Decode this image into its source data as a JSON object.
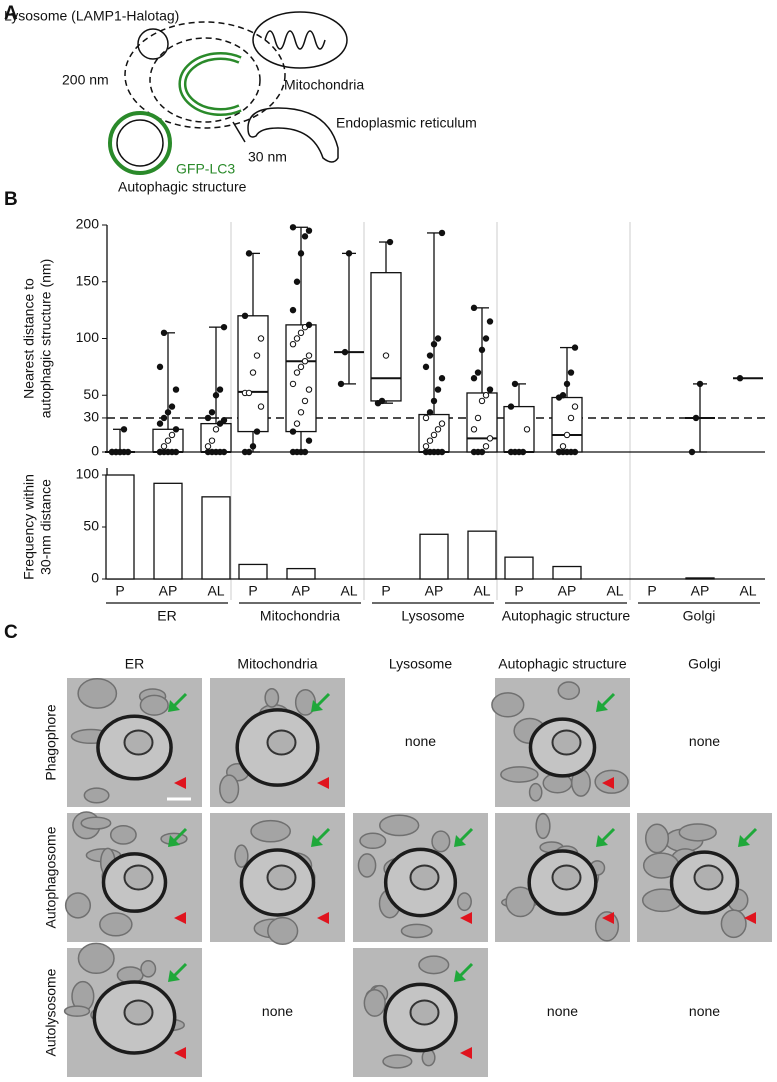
{
  "panels": [
    "A",
    "B",
    "C"
  ],
  "diagram": {
    "lysosome": "Lysosome (LAMP1-Halotag)",
    "mitochondria": "Mitochondria",
    "distance_200": "200 nm",
    "er": "Endoplasmic reticulum",
    "distance_30": "30 nm",
    "marker": "GFP-LC3",
    "autophagic": "Autophagic structure"
  },
  "chart_data": [
    {
      "type": "box",
      "ylabel": [
        "Nearest distance to",
        "autophagic structure (nm)"
      ],
      "categories": [
        "P",
        "AP",
        "AL"
      ],
      "ylim": [
        0,
        200
      ],
      "yticks": [
        0,
        30,
        50,
        100,
        150,
        200
      ],
      "threshold": 30,
      "groups": [
        {
          "name": "ER",
          "boxes": [
            {
              "min": 0,
              "q1": 0,
              "median": 0,
              "q3": 0,
              "max": 20,
              "points": [
                0,
                0,
                0,
                0,
                0,
                0,
                0,
                0,
                20
              ]
            },
            {
              "min": 0,
              "q1": 0,
              "median": 0,
              "q3": 20,
              "max": 105,
              "points": [
                0,
                0,
                0,
                0,
                0,
                0,
                5,
                10,
                15,
                20,
                25,
                30,
                35,
                40,
                55,
                75,
                105
              ]
            },
            {
              "min": 0,
              "q1": 0,
              "median": 0,
              "q3": 25,
              "max": 110,
              "points": [
                0,
                0,
                0,
                0,
                0,
                5,
                10,
                20,
                25,
                28,
                30,
                35,
                50,
                55,
                110
              ]
            }
          ]
        },
        {
          "name": "Mitochondria",
          "boxes": [
            {
              "min": 0,
              "q1": 18,
              "median": 53,
              "q3": 120,
              "max": 175,
              "points": [
                0,
                0,
                5,
                18,
                40,
                52,
                52,
                70,
                85,
                100,
                120,
                175
              ]
            },
            {
              "min": 0,
              "q1": 18,
              "median": 80,
              "q3": 112,
              "max": 198,
              "points": [
                0,
                0,
                0,
                0,
                10,
                18,
                25,
                35,
                45,
                55,
                60,
                70,
                75,
                80,
                85,
                95,
                100,
                105,
                110,
                112,
                125,
                150,
                175,
                190,
                195,
                198
              ]
            },
            {
              "min": 60,
              "q1": 88,
              "median": 88,
              "q3": 88,
              "max": 175,
              "points": [
                60,
                88,
                175
              ]
            }
          ]
        },
        {
          "name": "Lysosome",
          "boxes": [
            {
              "min": 43,
              "q1": 45,
              "median": 65,
              "q3": 158,
              "max": 185,
              "points": [
                43,
                45,
                85,
                185
              ]
            },
            {
              "min": 0,
              "q1": 0,
              "median": 0,
              "q3": 33,
              "max": 193,
              "points": [
                0,
                0,
                0,
                0,
                0,
                5,
                10,
                15,
                20,
                25,
                30,
                35,
                45,
                55,
                65,
                75,
                85,
                95,
                100,
                193
              ]
            },
            {
              "min": 0,
              "q1": 0,
              "median": 12,
              "q3": 52,
              "max": 127,
              "points": [
                0,
                0,
                0,
                5,
                12,
                20,
                30,
                45,
                50,
                55,
                65,
                70,
                90,
                100,
                115,
                127
              ]
            }
          ]
        },
        {
          "name": "Autophagic structure",
          "boxes": [
            {
              "min": 0,
              "q1": 0,
              "median": 0,
              "q3": 40,
              "max": 60,
              "points": [
                0,
                0,
                0,
                0,
                20,
                40,
                60
              ]
            },
            {
              "min": 0,
              "q1": 0,
              "median": 15,
              "q3": 48,
              "max": 92,
              "points": [
                0,
                0,
                0,
                0,
                0,
                0,
                5,
                15,
                30,
                40,
                48,
                50,
                60,
                70,
                92
              ]
            },
            null
          ]
        },
        {
          "name": "Golgi",
          "boxes": [
            null,
            {
              "min": 0,
              "q1": 30,
              "median": 30,
              "q3": 30,
              "max": 60,
              "points": [
                0,
                30,
                60
              ]
            },
            {
              "min": 65,
              "q1": 65,
              "median": 65,
              "q3": 65,
              "max": 65,
              "points": [
                65
              ]
            }
          ]
        }
      ]
    },
    {
      "type": "bar",
      "ylabel": [
        "Frequency within",
        "30-nm distance"
      ],
      "ylim": [
        0,
        100
      ],
      "yticks": [
        0,
        50,
        100
      ],
      "values": [
        100,
        92,
        79,
        14,
        10,
        0,
        0,
        43,
        46,
        21,
        12,
        0,
        0,
        1,
        0
      ]
    }
  ],
  "em_panel": {
    "columns": [
      "ER",
      "Mitochondria",
      "Lysosome",
      "Autophagic structure",
      "Golgi"
    ],
    "rows": [
      "Phagophore",
      "Autophagosome",
      "Autolysosome"
    ],
    "cells": [
      [
        null,
        null,
        "none",
        null,
        "none"
      ],
      [
        null,
        null,
        null,
        null,
        null
      ],
      [
        null,
        "none",
        null,
        "none",
        "none"
      ]
    ]
  }
}
